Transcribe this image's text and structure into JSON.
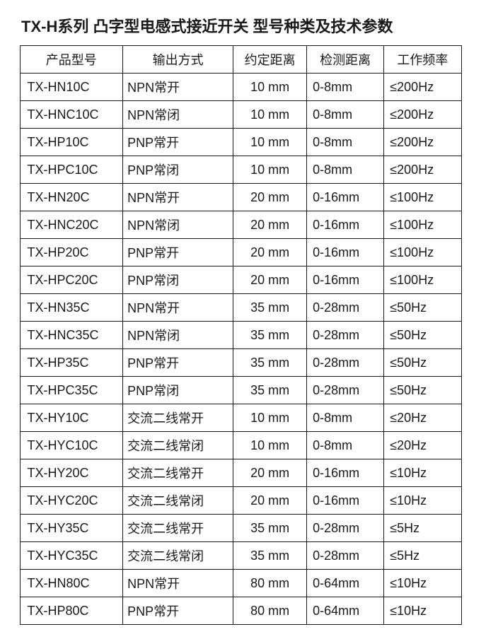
{
  "title": "TX-H系列 凸字型电感式接近开关 型号种类及技术参数",
  "table": {
    "headers": [
      "产品型号",
      "输出方式",
      "约定距离",
      "检测距离",
      "工作频率"
    ],
    "rows": [
      [
        "TX-HN10C",
        "NPN常开",
        "10 mm",
        "0-8mm",
        "≤200Hz"
      ],
      [
        "TX-HNC10C",
        "NPN常闭",
        "10 mm",
        "0-8mm",
        "≤200Hz"
      ],
      [
        "TX-HP10C",
        "PNP常开",
        "10 mm",
        "0-8mm",
        "≤200Hz"
      ],
      [
        "TX-HPC10C",
        "PNP常闭",
        "10 mm",
        "0-8mm",
        "≤200Hz"
      ],
      [
        "TX-HN20C",
        "NPN常开",
        "20 mm",
        "0-16mm",
        "≤100Hz"
      ],
      [
        "TX-HNC20C",
        "NPN常闭",
        "20 mm",
        "0-16mm",
        "≤100Hz"
      ],
      [
        "TX-HP20C",
        "PNP常开",
        "20 mm",
        "0-16mm",
        "≤100Hz"
      ],
      [
        "TX-HPC20C",
        "PNP常闭",
        "20 mm",
        "0-16mm",
        "≤100Hz"
      ],
      [
        "TX-HN35C",
        "NPN常开",
        "35 mm",
        "0-28mm",
        "≤50Hz"
      ],
      [
        "TX-HNC35C",
        "NPN常闭",
        "35 mm",
        "0-28mm",
        "≤50Hz"
      ],
      [
        "TX-HP35C",
        "PNP常开",
        "35 mm",
        "0-28mm",
        "≤50Hz"
      ],
      [
        "TX-HPC35C",
        "PNP常闭",
        "35 mm",
        "0-28mm",
        "≤50Hz"
      ],
      [
        "TX-HY10C",
        "交流二线常开",
        "10 mm",
        "0-8mm",
        "≤20Hz"
      ],
      [
        "TX-HYC10C",
        "交流二线常闭",
        "10 mm",
        "0-8mm",
        "≤20Hz"
      ],
      [
        "TX-HY20C",
        "交流二线常开",
        "20 mm",
        "0-16mm",
        "≤10Hz"
      ],
      [
        "TX-HYC20C",
        "交流二线常闭",
        "20 mm",
        "0-16mm",
        "≤10Hz"
      ],
      [
        "TX-HY35C",
        "交流二线常开",
        "35 mm",
        "0-28mm",
        "≤5Hz"
      ],
      [
        "TX-HYC35C",
        "交流二线常闭",
        "35 mm",
        "0-28mm",
        "≤5Hz"
      ],
      [
        "TX-HN80C",
        "NPN常开",
        "80 mm",
        "0-64mm",
        "≤10Hz"
      ],
      [
        "TX-HP80C",
        "PNP常开",
        "80 mm",
        "0-64mm",
        "≤10Hz"
      ]
    ],
    "column_classes": [
      "col-model",
      "col-output",
      "col-nominal",
      "col-detect",
      "col-freq"
    ],
    "border_color": "#1a1a1a",
    "text_color": "#1a1a1a",
    "background_color": "#ffffff",
    "header_fontsize": 18,
    "cell_fontsize": 18
  }
}
